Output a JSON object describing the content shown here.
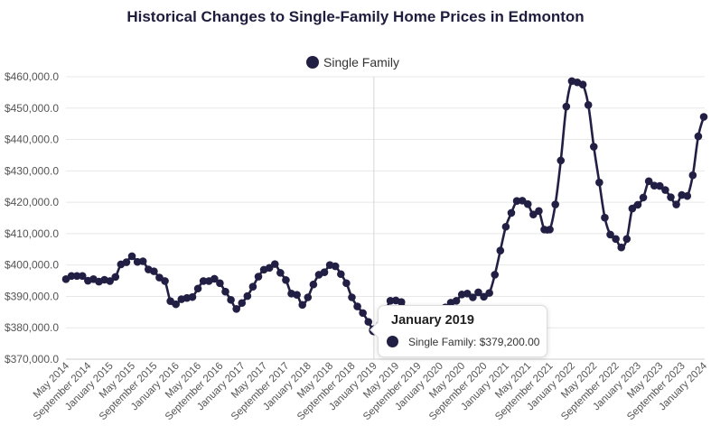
{
  "chart_data": {
    "type": "line",
    "title": "Historical Changes to Single-Family Home Prices in Edmonton",
    "xlabel": "",
    "ylabel": "",
    "ylim": [
      370000,
      460000
    ],
    "y_ticks": [
      460000,
      450000,
      440000,
      430000,
      420000,
      410000,
      400000,
      390000,
      380000,
      370000
    ],
    "y_tick_labels": [
      "$460,000.0",
      "$450,000.0",
      "$440,000.0",
      "$430,000.0",
      "$420,000.0",
      "$410,000.0",
      "$400,000.0",
      "$390,000.0",
      "$380,000.0",
      "$370,000.0"
    ],
    "x_tick_labels": [
      "May 2014",
      "September 2014",
      "January 2015",
      "May 2015",
      "September 2015",
      "January 2016",
      "May 2016",
      "September 2016",
      "January 2017",
      "May 2017",
      "September 2017",
      "January 2018",
      "May 2018",
      "September 2018",
      "January 2019",
      "May 2019",
      "September 2019",
      "January 2020",
      "May 2020",
      "September 2020",
      "January 2021",
      "May 2021",
      "September 2021",
      "January 2022",
      "May 2022",
      "September 2022",
      "January 2023",
      "May 2023",
      "September 2023",
      "January 2024"
    ],
    "legend_position": "top-center",
    "grid": true,
    "series": [
      {
        "name": "Single Family",
        "color": "#221f45",
        "start": "2014-05",
        "values": [
          395500,
          396500,
          396500,
          396500,
          395000,
          395500,
          394700,
          395300,
          394900,
          396200,
          400200,
          400900,
          402800,
          401000,
          401200,
          398600,
          398000,
          396000,
          394900,
          388500,
          387500,
          389100,
          389500,
          389800,
          392500,
          394900,
          394900,
          395600,
          394200,
          391500,
          388900,
          386000,
          387900,
          390100,
          393100,
          396300,
          398500,
          399100,
          400300,
          397500,
          395200,
          390900,
          390500,
          387300,
          389700,
          393800,
          396900,
          397700,
          400000,
          399600,
          397100,
          394200,
          389700,
          386800,
          384700,
          381900,
          379200,
          380800,
          384800,
          388600,
          388700,
          388200,
          385800,
          383600,
          381300,
          379900,
          380100,
          382200,
          384200,
          386500,
          388000,
          388600,
          390600,
          390900,
          389700,
          391300,
          389900,
          391100,
          396900,
          404600,
          412200,
          416600,
          420400,
          420500,
          419400,
          416100,
          417200,
          411300,
          411300,
          419300,
          433300,
          450500,
          458600,
          458200,
          457500,
          451000,
          437700,
          426300,
          415100,
          409700,
          408300,
          405600,
          408300,
          418000,
          419200,
          421500,
          426700,
          425300,
          425200,
          423900,
          421600,
          419300,
          422300,
          422000,
          428600,
          441000,
          447200
        ]
      }
    ],
    "tooltip": {
      "title": "January 2019",
      "text": "Single Family: $379,200.00",
      "index": 56
    }
  }
}
